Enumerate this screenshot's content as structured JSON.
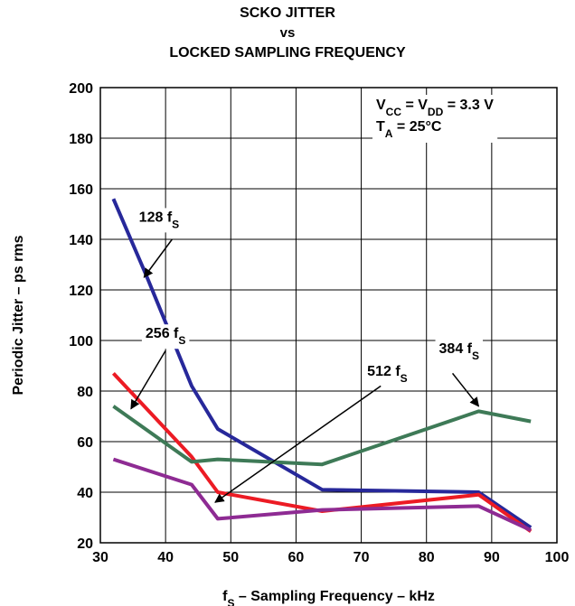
{
  "chart_data": {
    "type": "line",
    "title": [
      "SCKO JITTER",
      "vs",
      "LOCKED SAMPLING FREQUENCY"
    ],
    "xlabel": {
      "main": "f",
      "sub": "S",
      "rest": " – Sampling Frequency – kHz"
    },
    "ylabel": "Periodic Jitter – ps rms",
    "xlim": [
      30,
      100
    ],
    "ylim": [
      20,
      200
    ],
    "xticks": [
      30,
      40,
      50,
      60,
      70,
      80,
      90,
      100
    ],
    "yticks": [
      20,
      40,
      60,
      80,
      100,
      120,
      140,
      160,
      180,
      200
    ],
    "grid": true,
    "conditions": [
      {
        "parts": [
          [
            "V",
            ""
          ],
          [
            "CC",
            "sub"
          ],
          [
            " = V",
            ""
          ],
          [
            "DD",
            "sub"
          ],
          [
            " = 3.3 V",
            ""
          ]
        ]
      },
      {
        "parts": [
          [
            "T",
            ""
          ],
          [
            "A",
            "sub"
          ],
          [
            " = 25°C",
            ""
          ]
        ]
      }
    ],
    "series": [
      {
        "name": "128 fS",
        "label_main": "128 f",
        "label_sub": "S",
        "color": "#27289a",
        "x": [
          32,
          37,
          44,
          48,
          64,
          88,
          96
        ],
        "y": [
          156,
          126,
          82,
          65,
          41,
          40,
          26
        ]
      },
      {
        "name": "256 fS",
        "label_main": "256 f",
        "label_sub": "S",
        "color": "#ec1b24",
        "x": [
          32,
          44,
          48,
          64,
          88,
          96
        ],
        "y": [
          87,
          54,
          40,
          32.5,
          39,
          24.5
        ]
      },
      {
        "name": "384 fS",
        "label_main": "384 f",
        "label_sub": "S",
        "color": "#3e7a57",
        "x": [
          32,
          44,
          48,
          64,
          88,
          96
        ],
        "y": [
          74,
          52,
          53,
          51,
          72,
          68
        ]
      },
      {
        "name": "512 fS",
        "label_main": "512 f",
        "label_sub": "S",
        "color": "#8e2b93",
        "x": [
          32,
          44,
          48,
          64,
          88,
          96
        ],
        "y": [
          53,
          43,
          29.5,
          33,
          34.5,
          25
        ]
      }
    ],
    "callouts": [
      {
        "series": 0,
        "text_x": 39,
        "text_y": 147,
        "arrow_from": [
          41,
          140
        ],
        "arrow_to": [
          36.7,
          125
        ]
      },
      {
        "series": 1,
        "text_x": 40,
        "text_y": 101,
        "arrow_from": [
          40,
          96
        ],
        "arrow_to": [
          34.7,
          73
        ]
      },
      {
        "series": 2,
        "text_x": 85,
        "text_y": 95,
        "arrow_from": [
          84,
          87
        ],
        "arrow_to": [
          88,
          74
        ]
      },
      {
        "series": 3,
        "text_x": 74,
        "text_y": 86,
        "arrow_from": [
          73,
          82
        ],
        "arrow_to": [
          47.6,
          36
        ]
      }
    ]
  }
}
